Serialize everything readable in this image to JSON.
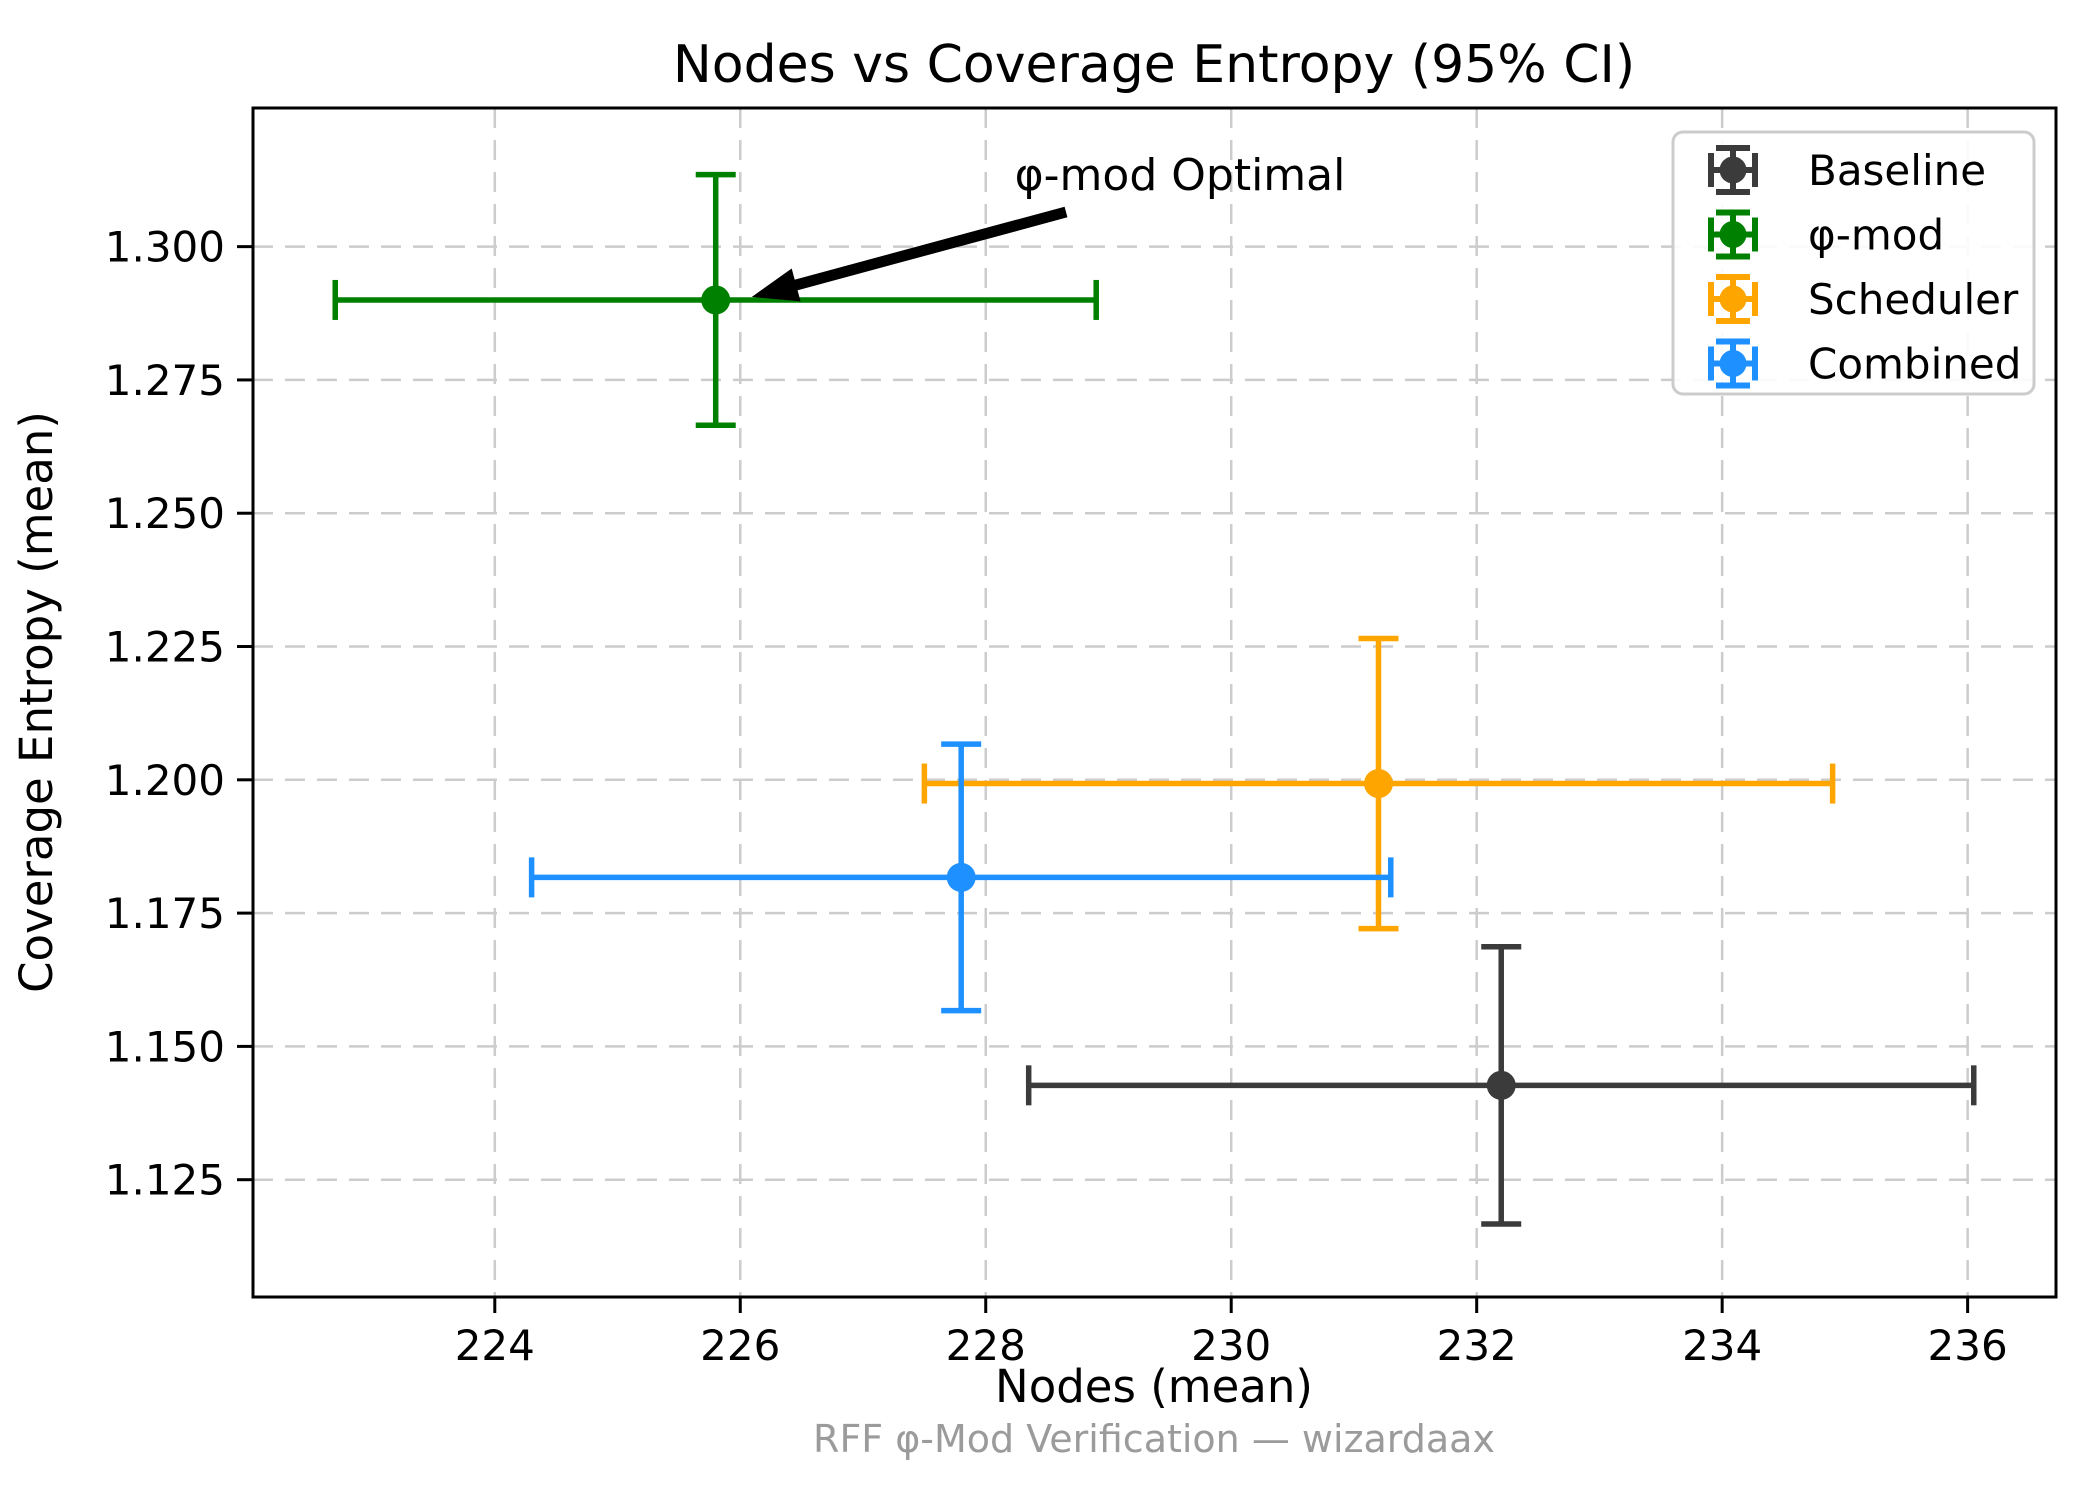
{
  "footer": "RFF φ-Mod Verification — wizardaax",
  "chart_data": {
    "type": "scatter",
    "title": "Nodes vs Coverage Entropy (95% CI)",
    "xlabel": "Nodes (mean)",
    "ylabel": "Coverage Entropy (mean)",
    "xlim": [
      222.03,
      236.72
    ],
    "ylim": [
      1.103,
      1.326
    ],
    "xticks": [
      224,
      226,
      228,
      230,
      232,
      234,
      236
    ],
    "yticks": [
      "1.125",
      "1.150",
      "1.175",
      "1.200",
      "1.225",
      "1.250",
      "1.275",
      "1.300"
    ],
    "grid": true,
    "grid_color": "#cccccc",
    "legend_position": "upper right",
    "series": [
      {
        "name": "Baseline",
        "color": "#3b3b3b",
        "x": 232.2,
        "y": 1.1427,
        "xerr": 3.85,
        "yerr": 0.026
      },
      {
        "name": "φ-mod",
        "color": "#008000",
        "x": 225.8,
        "y": 1.29,
        "xerr": 3.1,
        "yerr": 0.0235
      },
      {
        "name": "Scheduler",
        "color": "#ffa500",
        "x": 231.2,
        "y": 1.1993,
        "xerr": 3.7,
        "yerr": 0.0272
      },
      {
        "name": "Combined",
        "color": "#1e90ff",
        "x": 227.8,
        "y": 1.1817,
        "xerr": 3.5,
        "yerr": 0.025
      }
    ],
    "annotation": {
      "text": "φ-mod Optimal",
      "target_series": "φ-mod",
      "arrow_color": "#000000"
    }
  }
}
